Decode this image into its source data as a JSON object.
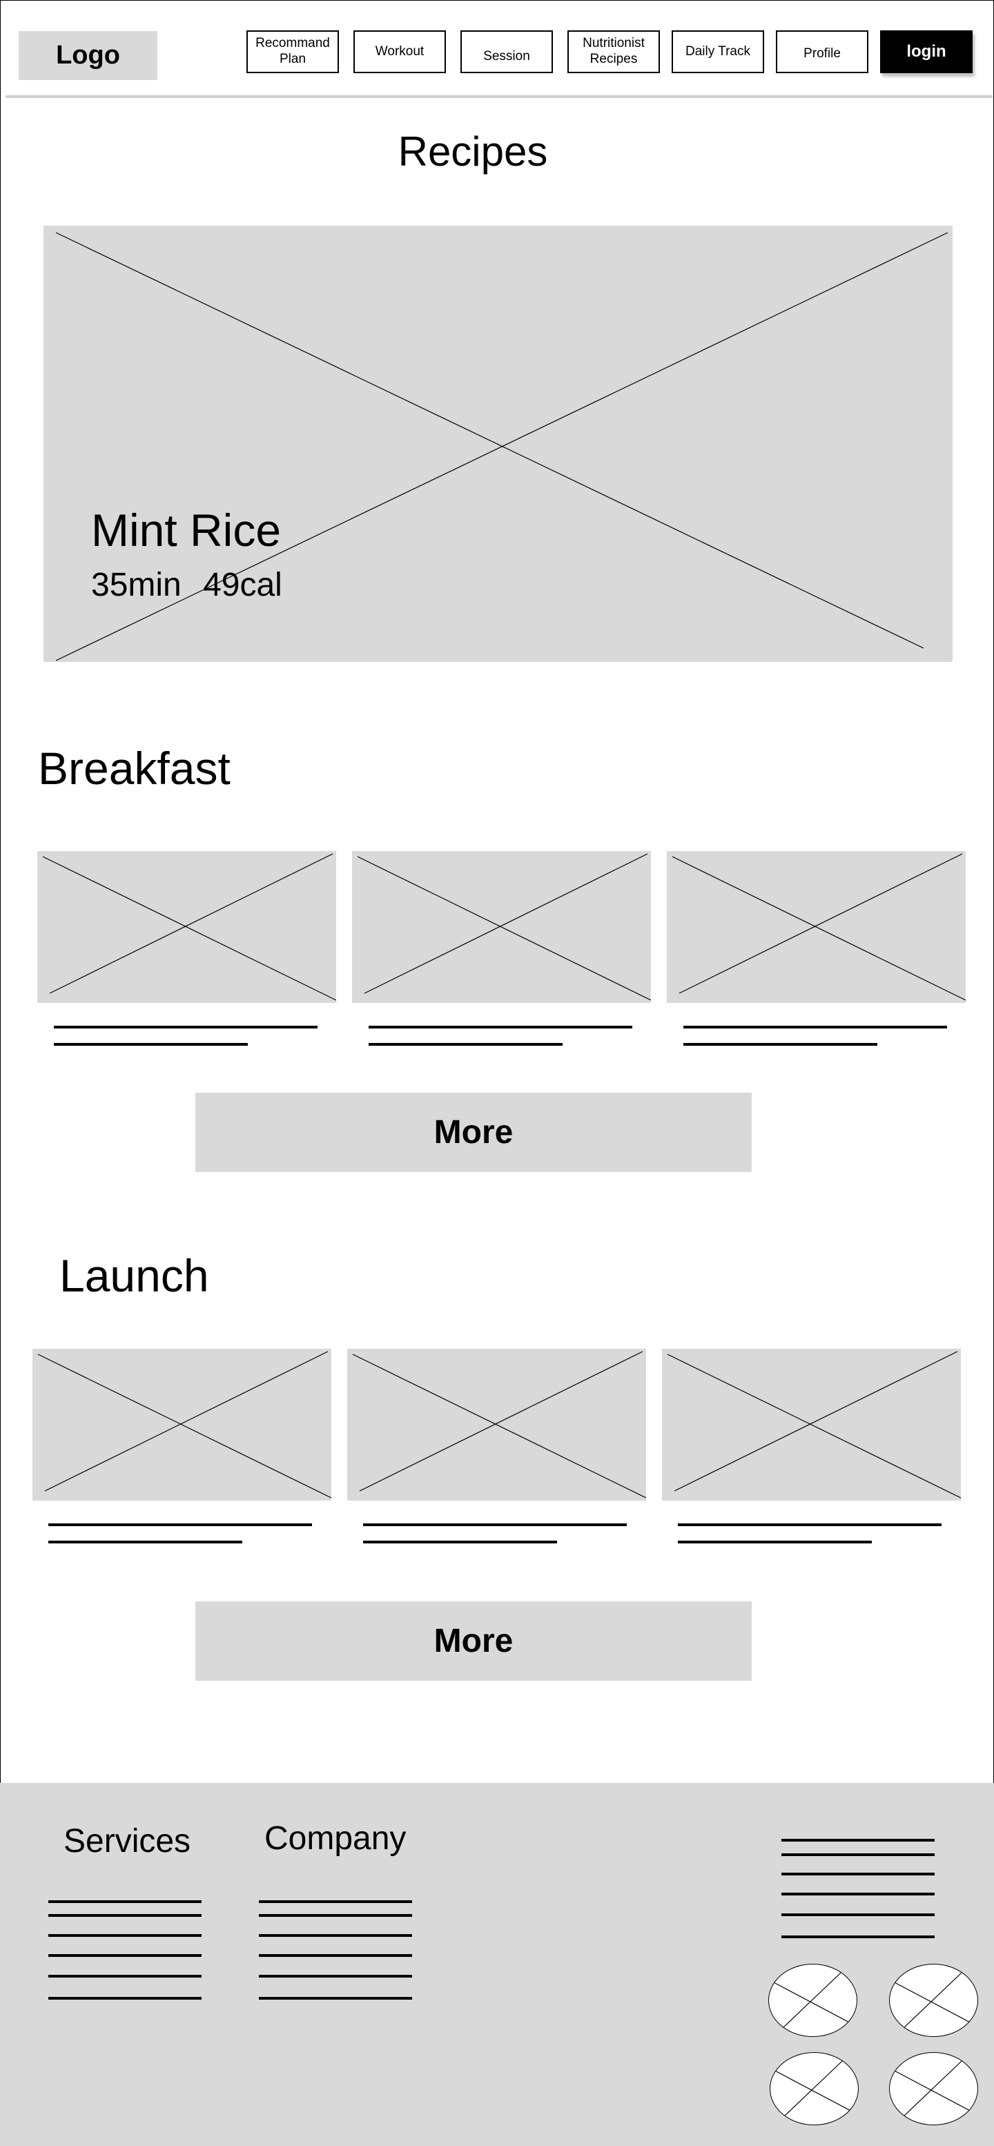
{
  "header": {
    "logo": "Logo",
    "nav": [
      "Recommand\nPlan",
      "Workout",
      "Session",
      "Nutritionist\nRecipes",
      "Daily Track",
      "Profile"
    ],
    "login": "login"
  },
  "page": {
    "title": "Recipes"
  },
  "hero": {
    "title": "Mint Rice",
    "meta": "35min 49cal"
  },
  "sections": {
    "breakfast": {
      "title": "Breakfast",
      "more": "More"
    },
    "launch": {
      "title": "Launch",
      "more": "More"
    }
  },
  "footer": {
    "services": "Services",
    "company": "Company"
  }
}
